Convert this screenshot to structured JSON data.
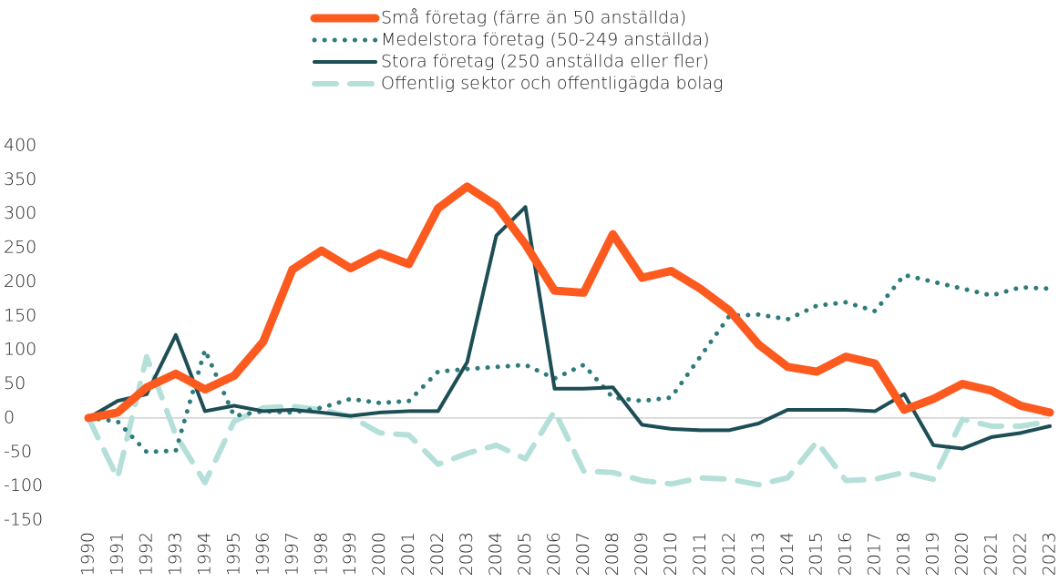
{
  "chart_data": {
    "type": "line",
    "x": [
      "1990",
      "1991",
      "1992",
      "1993",
      "1994",
      "1995",
      "1996",
      "1997",
      "1998",
      "1999",
      "2000",
      "2001",
      "2002",
      "2003",
      "2004",
      "2005",
      "2006",
      "2007",
      "2008",
      "2009",
      "2010",
      "2011",
      "2012",
      "2013",
      "2014",
      "2015",
      "2016",
      "2017",
      "2018",
      "2019",
      "2020",
      "2021",
      "2022",
      "2023"
    ],
    "series": [
      {
        "name": "Små företag (färre än 50 anställda)",
        "color": "#fc5a1e",
        "style": "solid",
        "width": 9,
        "values": [
          0,
          8,
          45,
          65,
          42,
          62,
          112,
          218,
          246,
          220,
          242,
          226,
          308,
          340,
          312,
          255,
          187,
          184,
          270,
          206,
          216,
          190,
          158,
          108,
          75,
          68,
          90,
          80,
          12,
          28,
          50,
          40,
          18,
          8
        ]
      },
      {
        "name": "Medelstora företag (50-249 anställda)",
        "color": "#2e7b7b",
        "style": "dotted",
        "width": 5,
        "values": [
          0,
          -5,
          -50,
          -48,
          100,
          3,
          10,
          8,
          15,
          28,
          22,
          25,
          68,
          72,
          75,
          78,
          58,
          78,
          30,
          25,
          30,
          90,
          150,
          152,
          145,
          165,
          170,
          157,
          210,
          200,
          190,
          180,
          192,
          190
        ]
      },
      {
        "name": "Stora företag (250 anställda eller fler)",
        "color": "#1d4e55",
        "style": "solid",
        "width": 4,
        "values": [
          0,
          25,
          35,
          122,
          10,
          18,
          10,
          12,
          8,
          3,
          8,
          10,
          10,
          82,
          268,
          310,
          43,
          43,
          45,
          -10,
          -16,
          -18,
          -18,
          -8,
          12,
          12,
          12,
          10,
          35,
          -40,
          -45,
          -28,
          -22,
          -12
        ]
      },
      {
        "name": "Offentlig sektor och offentligägda bolag",
        "color": "#b5e0da",
        "style": "dashed",
        "width": 6,
        "values": [
          0,
          -88,
          90,
          -25,
          -95,
          -5,
          15,
          17,
          12,
          2,
          -22,
          -25,
          -68,
          -52,
          -40,
          -60,
          10,
          -78,
          -80,
          -92,
          -97,
          -88,
          -90,
          -98,
          -88,
          -35,
          -92,
          -90,
          -80,
          -90,
          -2,
          -12,
          -12,
          -5
        ]
      }
    ],
    "ylim": [
      -150,
      400
    ],
    "yticks": [
      -150,
      -100,
      -50,
      0,
      50,
      100,
      150,
      200,
      250,
      300,
      350,
      400
    ]
  }
}
